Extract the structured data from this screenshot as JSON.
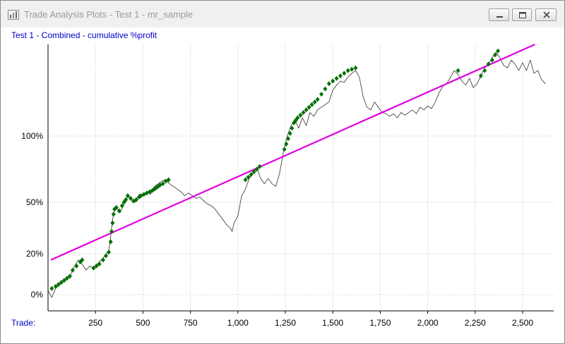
{
  "window": {
    "title": "Trade Analysis Plots - Test 1 - mr_sample",
    "icon": "app-chart-icon",
    "buttons": [
      "minimize-icon",
      "maximize-icon",
      "close-icon"
    ]
  },
  "chart_data": {
    "type": "line",
    "title": "Test 1 - Combined - cumulative %profit",
    "xlabel": "Trade:",
    "ylabel": "",
    "x_ticks": [
      "250",
      "500",
      "750",
      "1,000",
      "1,250",
      "1,500",
      "1,750",
      "2,000",
      "2,250",
      "2,500"
    ],
    "x_tick_values": [
      250,
      500,
      750,
      1000,
      1250,
      1500,
      1750,
      2000,
      2250,
      2500
    ],
    "y_ticks": [
      "0%",
      "20%",
      "50%",
      "100%"
    ],
    "y_tick_values": [
      0,
      20,
      50,
      100
    ],
    "ylim_note": "nonlinear (log-like) vertical scale",
    "xlim": [
      0,
      2650
    ],
    "grid": true,
    "series": [
      {
        "kind": "line",
        "color": "#303030",
        "points": [
          [
            0,
            2
          ],
          [
            20,
            -2
          ],
          [
            40,
            3
          ],
          [
            60,
            5
          ],
          [
            80,
            7
          ],
          [
            100,
            8
          ],
          [
            120,
            10
          ],
          [
            140,
            14
          ],
          [
            160,
            17
          ],
          [
            180,
            15
          ],
          [
            200,
            12
          ],
          [
            220,
            14
          ],
          [
            240,
            13
          ],
          [
            260,
            15
          ],
          [
            280,
            17
          ],
          [
            300,
            19
          ],
          [
            320,
            22
          ],
          [
            330,
            30
          ],
          [
            340,
            40
          ],
          [
            350,
            45
          ],
          [
            360,
            47
          ],
          [
            380,
            44
          ],
          [
            400,
            49
          ],
          [
            420,
            55
          ],
          [
            440,
            52
          ],
          [
            460,
            50
          ],
          [
            480,
            56
          ],
          [
            500,
            55
          ],
          [
            520,
            58
          ],
          [
            540,
            56
          ],
          [
            560,
            62
          ],
          [
            580,
            64
          ],
          [
            600,
            66
          ],
          [
            620,
            67
          ],
          [
            640,
            64
          ],
          [
            660,
            62
          ],
          [
            680,
            60
          ],
          [
            700,
            58
          ],
          [
            720,
            55
          ],
          [
            740,
            57
          ],
          [
            760,
            55
          ],
          [
            780,
            53
          ],
          [
            800,
            54
          ],
          [
            820,
            51
          ],
          [
            840,
            49
          ],
          [
            860,
            48
          ],
          [
            880,
            46
          ],
          [
            900,
            43
          ],
          [
            920,
            40
          ],
          [
            940,
            37
          ],
          [
            960,
            35
          ],
          [
            970,
            33
          ],
          [
            980,
            38
          ],
          [
            1000,
            42
          ],
          [
            1020,
            55
          ],
          [
            1040,
            60
          ],
          [
            1060,
            68
          ],
          [
            1080,
            72
          ],
          [
            1100,
            76
          ],
          [
            1120,
            68
          ],
          [
            1140,
            64
          ],
          [
            1160,
            68
          ],
          [
            1180,
            64
          ],
          [
            1200,
            62
          ],
          [
            1220,
            72
          ],
          [
            1240,
            88
          ],
          [
            1260,
            100
          ],
          [
            1280,
            108
          ],
          [
            1300,
            113
          ],
          [
            1320,
            106
          ],
          [
            1340,
            114
          ],
          [
            1360,
            108
          ],
          [
            1380,
            118
          ],
          [
            1400,
            115
          ],
          [
            1420,
            120
          ],
          [
            1440,
            122
          ],
          [
            1460,
            124
          ],
          [
            1480,
            126
          ],
          [
            1500,
            135
          ],
          [
            1520,
            139
          ],
          [
            1540,
            142
          ],
          [
            1560,
            141
          ],
          [
            1580,
            145
          ],
          [
            1600,
            148
          ],
          [
            1620,
            150
          ],
          [
            1640,
            145
          ],
          [
            1660,
            130
          ],
          [
            1680,
            122
          ],
          [
            1700,
            120
          ],
          [
            1720,
            126
          ],
          [
            1740,
            122
          ],
          [
            1760,
            118
          ],
          [
            1780,
            117
          ],
          [
            1800,
            115
          ],
          [
            1820,
            117
          ],
          [
            1840,
            114
          ],
          [
            1860,
            118
          ],
          [
            1880,
            116
          ],
          [
            1900,
            118
          ],
          [
            1920,
            120
          ],
          [
            1940,
            117
          ],
          [
            1960,
            122
          ],
          [
            1980,
            120
          ],
          [
            2000,
            123
          ],
          [
            2020,
            121
          ],
          [
            2040,
            126
          ],
          [
            2060,
            133
          ],
          [
            2080,
            138
          ],
          [
            2100,
            140
          ],
          [
            2120,
            145
          ],
          [
            2140,
            150
          ],
          [
            2160,
            147
          ],
          [
            2180,
            142
          ],
          [
            2200,
            139
          ],
          [
            2220,
            144
          ],
          [
            2240,
            137
          ],
          [
            2260,
            140
          ],
          [
            2280,
            146
          ],
          [
            2300,
            152
          ],
          [
            2320,
            155
          ],
          [
            2340,
            160
          ],
          [
            2360,
            164
          ],
          [
            2380,
            160
          ],
          [
            2400,
            154
          ],
          [
            2420,
            152
          ],
          [
            2440,
            158
          ],
          [
            2460,
            155
          ],
          [
            2480,
            150
          ],
          [
            2500,
            156
          ],
          [
            2520,
            150
          ],
          [
            2540,
            158
          ],
          [
            2560,
            148
          ],
          [
            2580,
            150
          ],
          [
            2600,
            143
          ],
          [
            2620,
            140
          ]
        ]
      },
      {
        "kind": "trend_line",
        "color": "#e000e0",
        "points": [
          [
            15,
            17
          ],
          [
            2565,
            170
          ]
        ]
      },
      {
        "kind": "markers",
        "color": "#007000",
        "points": [
          [
            20,
            3
          ],
          [
            40,
            4
          ],
          [
            55,
            5
          ],
          [
            70,
            6
          ],
          [
            85,
            7
          ],
          [
            100,
            8
          ],
          [
            115,
            9
          ],
          [
            130,
            12
          ],
          [
            150,
            14
          ],
          [
            170,
            16
          ],
          [
            180,
            17
          ],
          [
            240,
            13
          ],
          [
            255,
            14
          ],
          [
            270,
            15
          ],
          [
            290,
            17
          ],
          [
            305,
            19
          ],
          [
            320,
            21
          ],
          [
            330,
            27
          ],
          [
            335,
            33
          ],
          [
            340,
            38
          ],
          [
            345,
            43
          ],
          [
            350,
            46
          ],
          [
            360,
            47
          ],
          [
            375,
            45
          ],
          [
            390,
            48
          ],
          [
            400,
            50
          ],
          [
            410,
            52
          ],
          [
            420,
            55
          ],
          [
            435,
            53
          ],
          [
            450,
            51
          ],
          [
            465,
            52
          ],
          [
            480,
            54
          ],
          [
            490,
            55
          ],
          [
            505,
            56
          ],
          [
            520,
            57
          ],
          [
            535,
            58
          ],
          [
            550,
            59
          ],
          [
            560,
            60
          ],
          [
            570,
            61
          ],
          [
            580,
            62
          ],
          [
            590,
            63
          ],
          [
            605,
            64
          ],
          [
            620,
            66
          ],
          [
            635,
            67
          ],
          [
            1040,
            67
          ],
          [
            1055,
            69
          ],
          [
            1070,
            71
          ],
          [
            1085,
            73
          ],
          [
            1100,
            75
          ],
          [
            1115,
            77
          ],
          [
            1245,
            90
          ],
          [
            1255,
            94
          ],
          [
            1265,
            98
          ],
          [
            1275,
            102
          ],
          [
            1285,
            106
          ],
          [
            1295,
            110
          ],
          [
            1305,
            112
          ],
          [
            1315,
            114
          ],
          [
            1330,
            116
          ],
          [
            1345,
            118
          ],
          [
            1360,
            120
          ],
          [
            1375,
            122
          ],
          [
            1390,
            124
          ],
          [
            1405,
            126
          ],
          [
            1420,
            128
          ],
          [
            1440,
            132
          ],
          [
            1460,
            136
          ],
          [
            1480,
            140
          ],
          [
            1500,
            142
          ],
          [
            1520,
            144
          ],
          [
            1540,
            146
          ],
          [
            1560,
            148
          ],
          [
            1580,
            150
          ],
          [
            1600,
            151
          ],
          [
            1620,
            152
          ],
          [
            2160,
            150
          ],
          [
            2280,
            146
          ],
          [
            2300,
            150
          ],
          [
            2320,
            155
          ],
          [
            2340,
            158
          ],
          [
            2355,
            162
          ],
          [
            2370,
            165
          ]
        ]
      }
    ]
  }
}
